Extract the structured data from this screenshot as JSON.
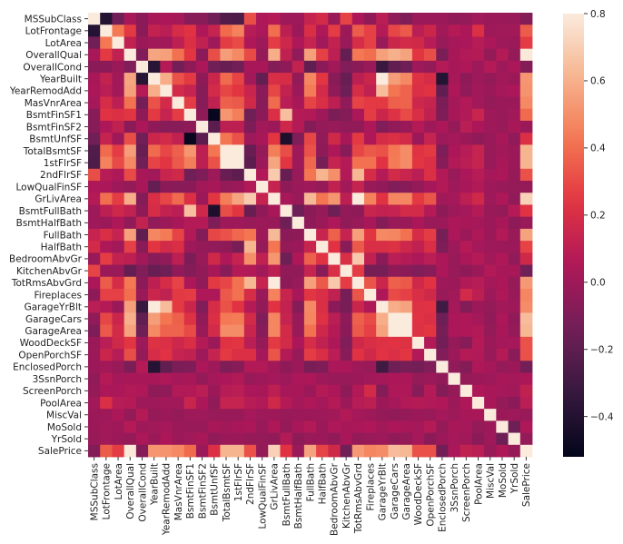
{
  "chart_data": {
    "type": "heatmap",
    "title": "",
    "labels": [
      "MSSubClass",
      "LotFrontage",
      "LotArea",
      "OverallQual",
      "OverallCond",
      "YearBuilt",
      "YearRemodAdd",
      "MasVnrArea",
      "BsmtFinSF1",
      "BsmtFinSF2",
      "BsmtUnfSF",
      "TotalBsmtSF",
      "1stFlrSF",
      "2ndFlrSF",
      "LowQualFinSF",
      "GrLivArea",
      "BsmtFullBath",
      "BsmtHalfBath",
      "FullBath",
      "HalfBath",
      "BedroomAbvGr",
      "KitchenAbvGr",
      "TotRmsAbvGrd",
      "Fireplaces",
      "GarageYrBlt",
      "GarageCars",
      "GarageArea",
      "WoodDeckSF",
      "OpenPorchSF",
      "EnclosedPorch",
      "3SsnPorch",
      "ScreenPorch",
      "PoolArea",
      "MiscVal",
      "MoSold",
      "YrSold",
      "SalePrice"
    ],
    "matrix_format": "lower-triangular rows of a symmetric correlation matrix",
    "values": [
      [
        1
      ],
      [
        -0.39,
        1
      ],
      [
        -0.14,
        0.43,
        1
      ],
      [
        0.03,
        0.25,
        0.11,
        1
      ],
      [
        -0.06,
        -0.06,
        -0.01,
        -0.09,
        1
      ],
      [
        0.03,
        0.12,
        0.01,
        0.57,
        -0.38,
        1
      ],
      [
        0.04,
        0.09,
        0.01,
        0.55,
        0.07,
        0.59,
        1
      ],
      [
        0.02,
        0.19,
        0.1,
        0.41,
        -0.13,
        0.32,
        0.18,
        1
      ],
      [
        -0.07,
        0.23,
        0.21,
        0.24,
        -0.05,
        0.25,
        0.13,
        0.26,
        1
      ],
      [
        -0.07,
        0.05,
        0.11,
        -0.06,
        0.04,
        -0.05,
        -0.07,
        -0.07,
        -0.05,
        1
      ],
      [
        -0.14,
        0.13,
        0.0,
        0.31,
        -0.14,
        0.15,
        0.18,
        0.11,
        -0.5,
        -0.21,
        1
      ],
      [
        -0.24,
        0.39,
        0.26,
        0.54,
        -0.17,
        0.39,
        0.29,
        0.36,
        0.52,
        0.1,
        0.42,
        1
      ],
      [
        -0.25,
        0.46,
        0.3,
        0.48,
        -0.14,
        0.28,
        0.24,
        0.34,
        0.45,
        0.1,
        0.32,
        0.82,
        1
      ],
      [
        0.31,
        0.08,
        0.05,
        0.3,
        0.03,
        0.01,
        0.14,
        0.17,
        -0.14,
        -0.1,
        0.0,
        -0.17,
        -0.2,
        1
      ],
      [
        0.05,
        0.04,
        0.0,
        -0.03,
        0.03,
        -0.18,
        -0.06,
        -0.07,
        -0.06,
        0.01,
        0.03,
        -0.03,
        -0.01,
        0.06,
        1
      ],
      [
        0.07,
        0.4,
        0.26,
        0.59,
        -0.08,
        0.2,
        0.29,
        0.39,
        0.21,
        -0.01,
        0.24,
        0.45,
        0.57,
        0.69,
        0.13,
        1
      ],
      [
        0.0,
        0.1,
        0.16,
        0.11,
        -0.05,
        0.19,
        0.12,
        0.09,
        0.65,
        0.16,
        -0.42,
        0.31,
        0.24,
        -0.17,
        -0.05,
        0.03,
        1
      ],
      [
        0.0,
        -0.01,
        0.05,
        -0.04,
        0.12,
        -0.04,
        -0.01,
        0.03,
        0.07,
        0.07,
        -0.1,
        0.0,
        0.0,
        -0.02,
        -0.01,
        -0.02,
        -0.15,
        1
      ],
      [
        0.13,
        0.2,
        0.13,
        0.55,
        -0.19,
        0.47,
        0.44,
        0.28,
        0.06,
        -0.08,
        0.29,
        0.32,
        0.38,
        0.42,
        0.0,
        0.63,
        -0.06,
        -0.05,
        1
      ],
      [
        0.18,
        0.05,
        0.01,
        0.27,
        -0.06,
        0.24,
        0.18,
        0.2,
        0.0,
        -0.03,
        -0.04,
        -0.05,
        -0.12,
        0.61,
        -0.03,
        0.42,
        -0.03,
        -0.01,
        0.14,
        1
      ],
      [
        -0.02,
        0.26,
        0.12,
        0.1,
        0.01,
        -0.07,
        -0.04,
        0.1,
        -0.11,
        -0.02,
        0.17,
        0.05,
        0.13,
        0.5,
        0.11,
        0.52,
        -0.15,
        0.05,
        0.36,
        0.23,
        1
      ],
      [
        0.28,
        -0.01,
        -0.02,
        -0.18,
        -0.09,
        -0.17,
        -0.15,
        -0.04,
        -0.08,
        -0.04,
        0.03,
        -0.07,
        0.07,
        0.06,
        0.01,
        0.1,
        -0.04,
        -0.04,
        0.13,
        -0.07,
        0.2,
        1
      ],
      [
        0.04,
        0.35,
        0.19,
        0.43,
        -0.06,
        0.1,
        0.19,
        0.28,
        0.04,
        -0.04,
        0.25,
        0.29,
        0.41,
        0.62,
        0.13,
        0.83,
        -0.05,
        -0.02,
        0.55,
        0.34,
        0.68,
        0.26,
        1
      ],
      [
        -0.05,
        0.27,
        0.27,
        0.4,
        -0.02,
        0.15,
        0.11,
        0.25,
        0.26,
        0.05,
        0.05,
        0.34,
        0.41,
        0.19,
        -0.02,
        0.46,
        0.14,
        0.03,
        0.24,
        0.2,
        0.11,
        -0.12,
        0.33,
        1
      ],
      [
        0.09,
        0.07,
        -0.02,
        0.55,
        -0.32,
        0.83,
        0.64,
        0.25,
        0.15,
        -0.09,
        0.19,
        0.32,
        0.23,
        0.07,
        -0.04,
        0.23,
        0.12,
        -0.08,
        0.48,
        0.2,
        -0.06,
        -0.12,
        0.15,
        0.05,
        1
      ],
      [
        -0.04,
        0.29,
        0.15,
        0.6,
        -0.19,
        0.54,
        0.42,
        0.36,
        0.22,
        -0.04,
        0.21,
        0.43,
        0.44,
        0.18,
        -0.09,
        0.47,
        0.13,
        -0.02,
        0.47,
        0.22,
        0.09,
        -0.05,
        0.36,
        0.3,
        0.59,
        1
      ],
      [
        -0.1,
        0.34,
        0.18,
        0.56,
        -0.15,
        0.48,
        0.37,
        0.37,
        0.3,
        -0.02,
        0.18,
        0.49,
        0.49,
        0.14,
        -0.07,
        0.47,
        0.18,
        -0.02,
        0.41,
        0.16,
        0.07,
        -0.06,
        0.34,
        0.27,
        0.56,
        0.88,
        1
      ],
      [
        -0.01,
        0.09,
        0.17,
        0.24,
        0.0,
        0.22,
        0.21,
        0.16,
        0.2,
        0.07,
        -0.01,
        0.23,
        0.24,
        0.09,
        -0.03,
        0.25,
        0.18,
        0.04,
        0.19,
        0.11,
        0.05,
        -0.09,
        0.17,
        0.2,
        0.22,
        0.23,
        0.22,
        1
      ],
      [
        -0.01,
        0.15,
        0.08,
        0.31,
        -0.03,
        0.19,
        0.23,
        0.13,
        0.11,
        0.0,
        0.13,
        0.25,
        0.21,
        0.21,
        0.02,
        0.33,
        0.07,
        -0.02,
        0.26,
        0.2,
        0.09,
        -0.07,
        0.23,
        0.17,
        0.23,
        0.21,
        0.24,
        0.06,
        1
      ],
      [
        -0.01,
        0.01,
        -0.02,
        -0.11,
        0.07,
        -0.39,
        -0.19,
        -0.11,
        -0.1,
        0.04,
        0.0,
        -0.1,
        -0.07,
        0.06,
        0.06,
        0.01,
        -0.05,
        -0.01,
        -0.12,
        -0.1,
        0.04,
        0.04,
        0.0,
        -0.02,
        -0.3,
        -0.15,
        -0.12,
        -0.13,
        -0.09,
        1
      ],
      [
        -0.04,
        0.07,
        0.02,
        0.03,
        0.03,
        0.03,
        0.05,
        0.02,
        0.03,
        -0.03,
        0.02,
        0.04,
        0.06,
        -0.02,
        0.0,
        0.02,
        0.0,
        0.04,
        0.04,
        0.0,
        -0.02,
        -0.02,
        -0.01,
        0.01,
        0.02,
        0.04,
        0.04,
        -0.03,
        -0.01,
        -0.04,
        1
      ],
      [
        -0.03,
        0.04,
        0.04,
        0.06,
        0.05,
        -0.05,
        -0.04,
        0.06,
        0.06,
        0.09,
        -0.01,
        0.08,
        0.09,
        0.04,
        0.03,
        0.1,
        0.02,
        0.03,
        -0.01,
        0.07,
        0.04,
        -0.05,
        0.06,
        0.18,
        -0.08,
        0.05,
        0.05,
        -0.07,
        0.07,
        -0.08,
        -0.03,
        1
      ],
      [
        0.01,
        0.21,
        0.08,
        0.07,
        0.0,
        0.0,
        0.01,
        0.01,
        0.14,
        0.04,
        -0.04,
        0.13,
        0.13,
        0.08,
        0.06,
        0.17,
        0.07,
        0.02,
        0.05,
        0.02,
        0.07,
        -0.01,
        0.08,
        0.1,
        -0.01,
        0.02,
        0.06,
        0.07,
        0.06,
        0.05,
        -0.01,
        0.05,
        1
      ],
      [
        -0.01,
        0.0,
        0.04,
        -0.03,
        0.07,
        -0.03,
        -0.01,
        -0.03,
        0.0,
        0.0,
        -0.02,
        -0.02,
        -0.02,
        0.02,
        0.0,
        0.0,
        -0.02,
        -0.01,
        -0.01,
        0.0,
        0.01,
        0.06,
        0.02,
        0.0,
        -0.03,
        -0.04,
        -0.03,
        -0.01,
        -0.02,
        0.02,
        0.0,
        0.03,
        0.03,
        1
      ],
      [
        -0.01,
        0.01,
        0.0,
        0.07,
        0.0,
        0.01,
        0.02,
        -0.01,
        -0.02,
        -0.02,
        0.03,
        0.01,
        0.03,
        0.04,
        -0.02,
        0.05,
        -0.03,
        0.03,
        0.06,
        -0.01,
        0.05,
        0.03,
        0.04,
        0.05,
        0.01,
        0.04,
        0.03,
        0.02,
        0.07,
        -0.03,
        0.03,
        0.02,
        -0.03,
        -0.01,
        1
      ],
      [
        -0.02,
        0.01,
        -0.01,
        -0.03,
        0.04,
        -0.01,
        0.04,
        -0.01,
        0.01,
        0.03,
        -0.04,
        -0.01,
        -0.01,
        -0.03,
        -0.03,
        -0.04,
        0.07,
        -0.05,
        -0.02,
        -0.01,
        -0.04,
        0.03,
        -0.03,
        -0.02,
        0.0,
        -0.04,
        -0.03,
        0.02,
        -0.06,
        -0.01,
        0.02,
        0.01,
        -0.06,
        0.0,
        -0.15,
        1
      ],
      [
        -0.08,
        0.35,
        0.26,
        0.79,
        -0.08,
        0.52,
        0.51,
        0.48,
        0.39,
        -0.01,
        0.21,
        0.61,
        0.61,
        0.32,
        -0.03,
        0.71,
        0.23,
        -0.02,
        0.56,
        0.28,
        0.17,
        -0.14,
        0.53,
        0.47,
        0.49,
        0.64,
        0.62,
        0.32,
        0.32,
        -0.13,
        0.04,
        0.11,
        0.09,
        -0.02,
        0.05,
        -0.03,
        1
      ]
    ],
    "color_range": [
      -0.52,
      0.8
    ],
    "colormap": "rocket",
    "colormap_stops": [
      "#03051A",
      "#35193E",
      "#701F57",
      "#AD1759",
      "#E13342",
      "#F37651",
      "#F6B48F",
      "#FAEBDD"
    ],
    "colorbar_ticks": [
      {
        "value": 0.8,
        "label": "0.8"
      },
      {
        "value": 0.6,
        "label": "0.6"
      },
      {
        "value": 0.4,
        "label": "0.4"
      },
      {
        "value": 0.2,
        "label": "0.2"
      },
      {
        "value": 0.0,
        "label": "0.0"
      },
      {
        "value": -0.2,
        "label": "−0.2"
      },
      {
        "value": -0.4,
        "label": "−0.4"
      }
    ],
    "legend_placement": "right"
  }
}
